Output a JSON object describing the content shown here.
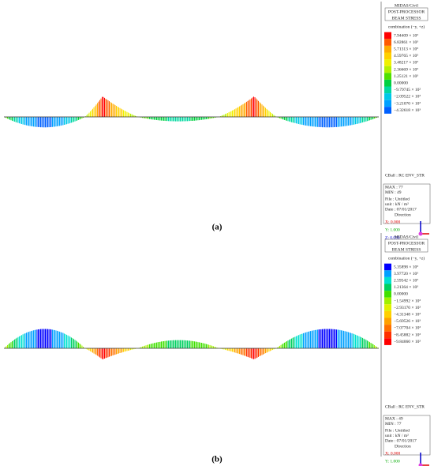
{
  "panels": [
    {
      "header": [
        "MIDAS/Civil",
        "POST-PROCESSOR",
        "BEAM STRESS"
      ],
      "legend_title": "combination (−y, +z)",
      "legend": [
        {
          "label": "7.94409 × 10³",
          "color": "#ff0000"
        },
        {
          "label": "6.82861 × 10³",
          "color": "#ff5a00"
        },
        {
          "label": "5.71313 × 10³",
          "color": "#ffaa00"
        },
        {
          "label": "4.59765 × 10³",
          "color": "#ffd000"
        },
        {
          "label": "3.48217 × 10³",
          "color": "#f0f000"
        },
        {
          "label": "2.36669 × 10³",
          "color": "#b4f000"
        },
        {
          "label": "1.25121 × 10³",
          "color": "#50e000"
        },
        {
          "label": "0.00000",
          "color": "#00d040"
        },
        {
          "label": "−9.79745 × 10²",
          "color": "#00d8a0"
        },
        {
          "label": "−2.09522 × 10³",
          "color": "#00c8e8"
        },
        {
          "label": "−3.21070 × 10³",
          "color": "#00a0ff"
        },
        {
          "label": "−4.32618 × 10³",
          "color": "#0060ff"
        }
      ],
      "load_case": "CBall : RC ENV_STR",
      "max": "MAX : 77",
      "min": "MIN : 49",
      "file": "File : Untitled",
      "unit": "unit : kN / m²",
      "date": "Date : 07/01/2017",
      "direction": "Direction",
      "x": "X: 0.000",
      "y": "Y: 1.000",
      "z": "Z: 0.000",
      "caption": "(a)"
    },
    {
      "header": [
        "MIDAS/Civil",
        "POST-PROCESSOR",
        "BEAM STRESS"
      ],
      "legend_title": "combination (−y, +z)",
      "legend": [
        {
          "label": "5.35898 × 10³",
          "color": "#0000ff"
        },
        {
          "label": "3.97720 × 10³",
          "color": "#00a0ff"
        },
        {
          "label": "2.59542 × 10³",
          "color": "#00e0d0"
        },
        {
          "label": "1.21364 × 10³",
          "color": "#00d060"
        },
        {
          "label": "0.00000",
          "color": "#40e000"
        },
        {
          "label": "−1.54992 × 10³",
          "color": "#a0f000"
        },
        {
          "label": "−2.93170 × 10³",
          "color": "#e0f000"
        },
        {
          "label": "−4.31348 × 10³",
          "color": "#ffd000"
        },
        {
          "label": "−5.69526 × 10³",
          "color": "#ffa000"
        },
        {
          "label": "−7.07704 × 10³",
          "color": "#ff7000"
        },
        {
          "label": "−8.45882 × 10³",
          "color": "#ff3000"
        },
        {
          "label": "−9.84060 × 10³",
          "color": "#ff0000"
        }
      ],
      "load_case": "CBall : RC ENV_STR",
      "max": "MAX : 49",
      "min": "MIN : 77",
      "file": "File : Untitled",
      "unit": "unit : kN / m²",
      "date": "Date : 07/01/2017",
      "direction": "Direction",
      "x": "X: 0.000",
      "y": "Y: 1.000",
      "z": "Z: 0.000",
      "caption": "(b)"
    }
  ]
}
